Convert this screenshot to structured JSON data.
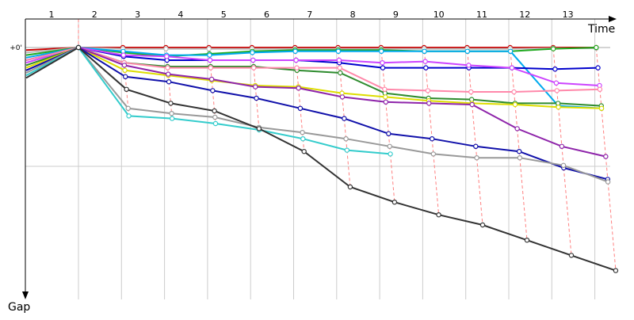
{
  "chart_data": {
    "type": "line",
    "xlabel": "Time",
    "ylabel": "Gap",
    "x": [
      1,
      2,
      3,
      4,
      5,
      6,
      7,
      8,
      9,
      10,
      11,
      12,
      13,
      14
    ],
    "x_tick_labels": [
      "1",
      "2",
      "3",
      "4",
      "5",
      "6",
      "7",
      "8",
      "9",
      "10",
      "11",
      "12",
      "13"
    ],
    "y_tick_labels": [
      "+0'"
    ],
    "ylim": [
      0,
      0.95
    ],
    "y_inverted": true,
    "grid": true,
    "series": [
      {
        "color": "#cc0000",
        "values": [
          0.01,
          0.0,
          0.0,
          0.0,
          0.0,
          0.0,
          0.0,
          0.0,
          0.0,
          0.0,
          0.0,
          0.0,
          0.0,
          0.0
        ]
      },
      {
        "color": "#bbbbbb",
        "values": [
          0.02,
          0.0,
          0.005,
          0.005,
          0.005,
          0.005,
          0.005,
          0.005,
          0.005,
          0.005,
          0.005,
          0.005,
          0.003,
          0.003
        ]
      },
      {
        "color": "#22aa22",
        "values": [
          0.03,
          0.0,
          0.02,
          0.035,
          0.025,
          0.015,
          0.01,
          0.01,
          0.01,
          0.015,
          0.015,
          0.015,
          0.005,
          0.0
        ]
      },
      {
        "color": "#00aaee",
        "values": [
          0.04,
          0.0,
          0.015,
          0.03,
          0.03,
          0.02,
          0.015,
          0.015,
          0.015,
          0.015,
          0.015,
          0.015,
          0.23,
          0.24
        ]
      },
      {
        "color": "#0000cc",
        "values": [
          0.05,
          0.0,
          0.035,
          0.05,
          0.05,
          0.05,
          0.05,
          0.06,
          0.08,
          0.08,
          0.08,
          0.08,
          0.085,
          0.08
        ]
      },
      {
        "color": "#cc44ff",
        "values": [
          0.06,
          0.0,
          0.03,
          0.035,
          0.05,
          0.05,
          0.05,
          0.05,
          0.06,
          0.055,
          0.07,
          0.08,
          0.14,
          0.15
        ]
      },
      {
        "color": "#2e8b2e",
        "values": [
          0.07,
          0.0,
          0.06,
          0.075,
          0.075,
          0.075,
          0.09,
          0.1,
          0.18,
          0.2,
          0.205,
          0.22,
          0.22,
          0.23
        ]
      },
      {
        "color": "#ff88aa",
        "values": [
          0.05,
          0.0,
          0.06,
          0.08,
          0.08,
          0.08,
          0.08,
          0.08,
          0.165,
          0.17,
          0.175,
          0.175,
          0.17,
          0.165
        ]
      },
      {
        "color": "#dddd00",
        "values": [
          0.08,
          0.0,
          0.09,
          0.11,
          0.13,
          0.15,
          0.155,
          0.18,
          0.195,
          0.21,
          0.22,
          0.225,
          0.235,
          0.24
        ]
      },
      {
        "color": "#8e24aa",
        "values": [
          0.09,
          0.0,
          0.07,
          0.105,
          0.125,
          0.155,
          0.16,
          0.195,
          0.215,
          0.22,
          0.225,
          0.32,
          0.39,
          0.43
        ]
      },
      {
        "color": "#1010aa",
        "values": [
          0.09,
          0.0,
          0.115,
          0.135,
          0.17,
          0.2,
          0.24,
          0.28,
          0.34,
          0.36,
          0.39,
          0.41,
          0.475,
          0.52
        ]
      },
      {
        "color": "#999999",
        "values": [
          0.1,
          0.0,
          0.24,
          0.26,
          0.275,
          0.315,
          0.335,
          0.36,
          0.39,
          0.42,
          0.435,
          0.435,
          0.465,
          0.53
        ]
      },
      {
        "color": "#33cccc",
        "values": [
          0.11,
          0.0,
          0.27,
          0.28,
          0.3,
          0.325,
          0.36,
          0.405,
          0.42,
          null,
          null,
          null,
          null,
          null
        ]
      },
      {
        "color": "#333333",
        "values": [
          0.12,
          0.0,
          0.165,
          0.22,
          0.25,
          0.32,
          0.41,
          0.55,
          0.61,
          0.66,
          0.7,
          0.76,
          0.82,
          0.88
        ]
      }
    ]
  }
}
